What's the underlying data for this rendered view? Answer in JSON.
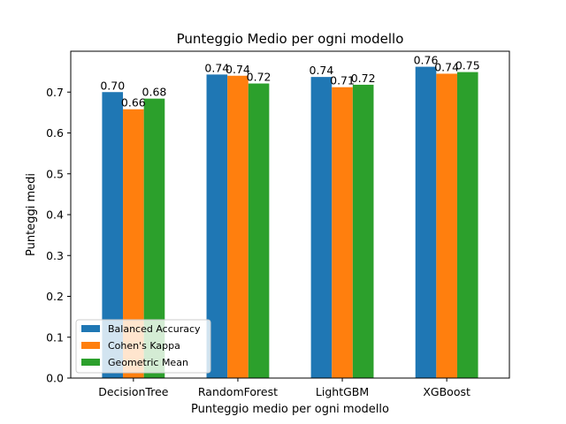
{
  "chart_data": {
    "type": "bar",
    "title": "Punteggio Medio per ogni modello",
    "xlabel": "Punteggio medio per ogni modello",
    "ylabel": "Punteggi medi",
    "categories": [
      "DecisionTree",
      "RandomForest",
      "LightGBM",
      "XGBoost"
    ],
    "series": [
      {
        "name": "Balanced Accuracy",
        "color": "#1f77b4",
        "values": [
          0.7,
          0.743,
          0.737,
          0.762
        ],
        "labels": [
          "0.70",
          "0.74",
          "0.74",
          "0.76"
        ]
      },
      {
        "name": "Cohen's Kappa",
        "color": "#ff7f0e",
        "values": [
          0.658,
          0.74,
          0.712,
          0.745
        ],
        "labels": [
          "0.66",
          "0.74",
          "0.71",
          "0.74"
        ]
      },
      {
        "name": "Geometric Mean",
        "color": "#2ca02c",
        "values": [
          0.684,
          0.721,
          0.718,
          0.749
        ],
        "labels": [
          "0.68",
          "0.72",
          "0.72",
          "0.75"
        ]
      }
    ],
    "yticks": [
      0.0,
      0.1,
      0.2,
      0.3,
      0.4,
      0.5,
      0.6,
      0.7
    ],
    "ytick_labels": [
      "0.0",
      "0.1",
      "0.2",
      "0.3",
      "0.4",
      "0.5",
      "0.6",
      "0.7"
    ],
    "ylim": [
      0,
      0.8
    ],
    "grid": false,
    "legend_position": "lower-left"
  }
}
